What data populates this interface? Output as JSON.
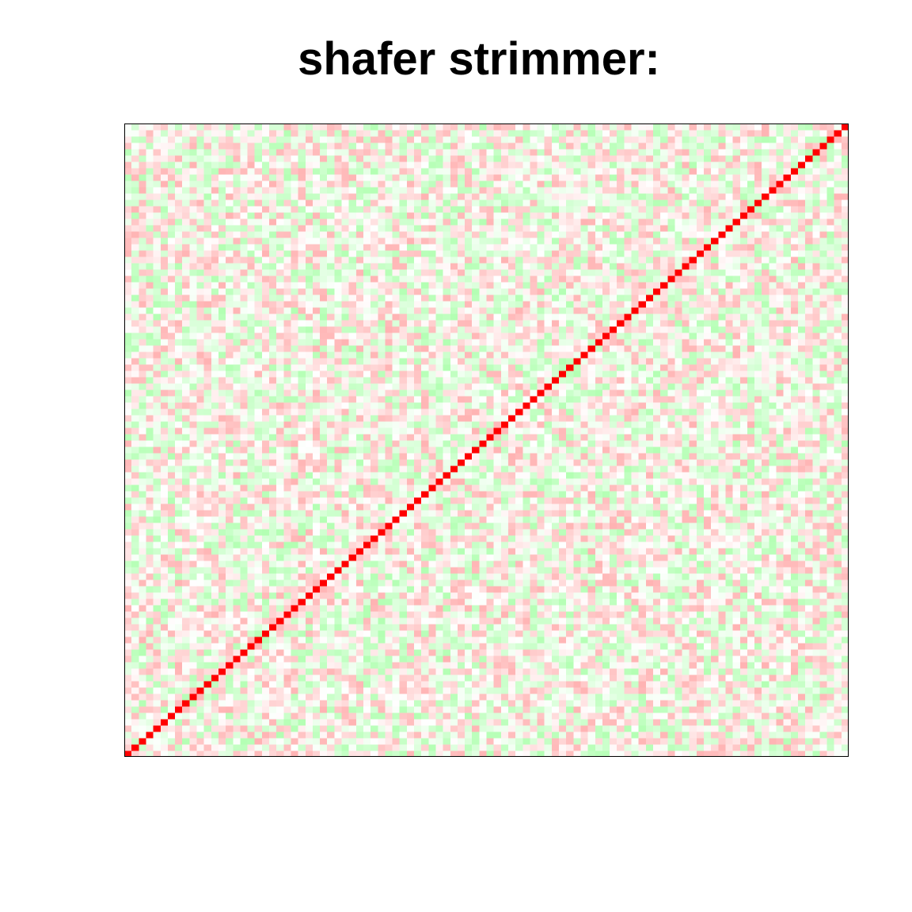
{
  "chart_data": {
    "type": "heatmap",
    "title": "shafer strimmer:",
    "xlabel": "",
    "ylabel": "",
    "n": 100,
    "value_range": [
      -1,
      1
    ],
    "diagonal_value": 1,
    "off_diagonal_range": [
      -0.3,
      0.3
    ],
    "colors": {
      "negative": "#00ff00",
      "zero": "#ffffff",
      "positive": "#ff0000",
      "frame": "#000000",
      "background": "#ffffff"
    },
    "diagonal_direction": "bottom-left to top-right",
    "random_seed": 20240517
  }
}
